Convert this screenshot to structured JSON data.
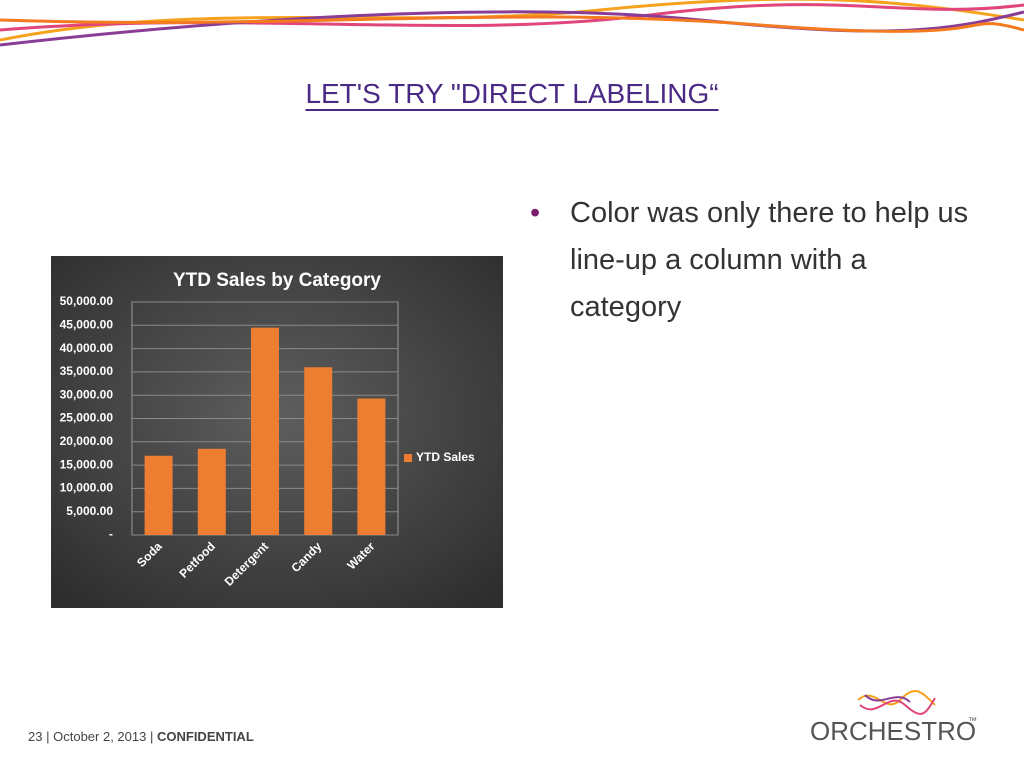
{
  "slide": {
    "title": "LET'S TRY \"DIRECT LABELING“",
    "bullet": "Color was only there to help us line-up a column with a category",
    "footer": {
      "page": "23",
      "separator": "|",
      "date": "October 2, 2013",
      "label": "CONFIDENTIAL"
    },
    "logo": {
      "text": "ORCHESTRO",
      "mark": "™"
    }
  },
  "chart_data": {
    "type": "bar",
    "title": "YTD Sales by Category",
    "categories": [
      "Soda",
      "Petfood",
      "Detergent",
      "Candy",
      "Water"
    ],
    "series": [
      {
        "name": "YTD Sales",
        "color": "#ed7d31",
        "values": [
          17000,
          18500,
          44500,
          36000,
          29300
        ]
      }
    ],
    "ylim": [
      0,
      50000
    ],
    "yticks": [
      {
        "value": 0,
        "label": "-"
      },
      {
        "value": 5000,
        "label": "5,000.00"
      },
      {
        "value": 10000,
        "label": "10,000.00"
      },
      {
        "value": 15000,
        "label": "15,000.00"
      },
      {
        "value": 20000,
        "label": "20,000.00"
      },
      {
        "value": 25000,
        "label": "25,000.00"
      },
      {
        "value": 30000,
        "label": "30,000.00"
      },
      {
        "value": 35000,
        "label": "35,000.00"
      },
      {
        "value": 40000,
        "label": "40,000.00"
      },
      {
        "value": 45000,
        "label": "45,000.00"
      },
      {
        "value": 50000,
        "label": "50,000.00"
      }
    ],
    "grid": true,
    "legend": "right"
  }
}
